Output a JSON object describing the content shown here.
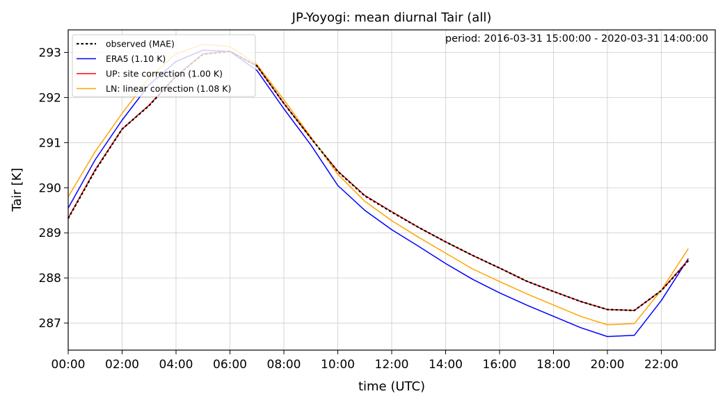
{
  "chart_data": {
    "type": "line",
    "title": "JP-Yoyogi: mean diurnal Tair (all)",
    "annotation": "period: 2016-03-31 15:00:00 - 2020-03-31 14:00:00",
    "xlabel": "time (UTC)",
    "ylabel": "Tair [K]",
    "xlim": [
      0,
      24
    ],
    "ylim": [
      286.4,
      293.5
    ],
    "x_ticks": [
      0,
      2,
      4,
      6,
      8,
      10,
      12,
      14,
      16,
      18,
      20,
      22
    ],
    "x_tick_labels": [
      "00:00",
      "02:00",
      "04:00",
      "06:00",
      "08:00",
      "10:00",
      "12:00",
      "14:00",
      "16:00",
      "18:00",
      "20:00",
      "22:00"
    ],
    "y_ticks": [
      287,
      288,
      289,
      290,
      291,
      292,
      293
    ],
    "y_tick_labels": [
      "287",
      "288",
      "289",
      "290",
      "291",
      "292",
      "293"
    ],
    "grid": true,
    "legend_position": "top-left",
    "x": [
      0,
      1,
      2,
      3,
      4,
      5,
      6,
      7,
      8,
      9,
      10,
      11,
      12,
      13,
      14,
      15,
      16,
      17,
      18,
      19,
      20,
      21,
      22,
      23
    ],
    "series": [
      {
        "name": "ERA5 (1.10 K)",
        "color": "#0000ff",
        "style": "solid",
        "values": [
          289.55,
          290.62,
          291.5,
          292.28,
          292.8,
          293.05,
          293.02,
          292.6,
          291.75,
          290.95,
          290.05,
          289.5,
          289.07,
          288.7,
          288.32,
          287.97,
          287.67,
          287.4,
          287.15,
          286.9,
          286.7,
          286.73,
          287.5,
          288.43
        ]
      },
      {
        "name": "UP: site correction (1.00 K)",
        "color": "#ff0000",
        "style": "solid",
        "values": [
          289.33,
          290.4,
          291.3,
          291.83,
          292.48,
          292.97,
          293.03,
          292.7,
          291.87,
          291.1,
          290.37,
          289.83,
          289.47,
          289.12,
          288.8,
          288.5,
          288.22,
          287.93,
          287.7,
          287.48,
          287.3,
          287.28,
          287.72,
          288.4
        ]
      },
      {
        "name": "LN: linear correction (1.08 K)",
        "color": "#ffa500",
        "style": "solid",
        "values": [
          289.8,
          290.8,
          291.65,
          292.43,
          292.97,
          293.18,
          293.13,
          292.73,
          291.95,
          291.13,
          290.3,
          289.7,
          289.27,
          288.9,
          288.55,
          288.2,
          287.92,
          287.65,
          287.4,
          287.15,
          286.96,
          286.99,
          287.73,
          288.65
        ]
      },
      {
        "name": "observed (MAE)",
        "color": "#000000",
        "style": "dotted",
        "values": [
          289.32,
          290.38,
          291.3,
          291.82,
          292.47,
          292.96,
          293.02,
          292.7,
          291.87,
          291.1,
          290.36,
          289.82,
          289.46,
          289.12,
          288.8,
          288.5,
          288.22,
          287.93,
          287.7,
          287.48,
          287.3,
          287.28,
          287.72,
          288.38
        ]
      }
    ],
    "legend_order": [
      3,
      0,
      1,
      2
    ]
  }
}
